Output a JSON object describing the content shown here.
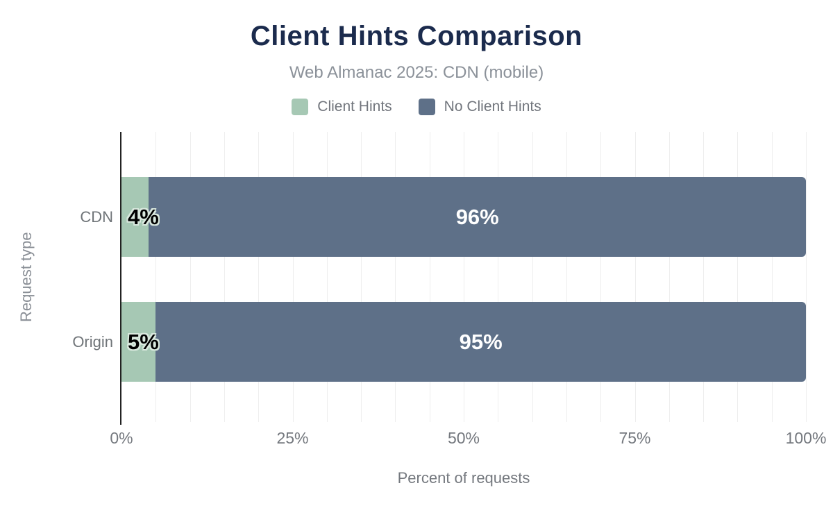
{
  "chart_data": {
    "type": "bar",
    "orientation": "horizontal",
    "stacked": true,
    "title": "Client Hints Comparison",
    "subtitle": "Web Almanac 2025: CDN (mobile)",
    "categories": [
      "CDN",
      "Origin"
    ],
    "series": [
      {
        "name": "Client Hints",
        "color": "#a6c8b4",
        "values": [
          4,
          5
        ],
        "labels": [
          "4%",
          "5%"
        ]
      },
      {
        "name": "No Client Hints",
        "color": "#5e7088",
        "values": [
          96,
          95
        ],
        "labels": [
          "96%",
          "95%"
        ]
      }
    ],
    "xlabel": "Percent of requests",
    "ylabel": "Request type",
    "xlim": [
      0,
      100
    ],
    "xticks": [
      {
        "value": 0,
        "label": "0%"
      },
      {
        "value": 25,
        "label": "25%"
      },
      {
        "value": 50,
        "label": "50%"
      },
      {
        "value": 75,
        "label": "75%"
      },
      {
        "value": 100,
        "label": "100%"
      }
    ],
    "grid": {
      "on": true,
      "minor_step_percent": 5,
      "color": "#eeeeee"
    },
    "legend_position": "top"
  },
  "colors": {
    "title": "#1b2b4d",
    "subtitle": "#8b9199",
    "axis_text": "#74787e",
    "category_text": "#6f7478",
    "axis_line": "#222222",
    "background": "#ffffff",
    "bar_value_dark": "#000000",
    "bar_value_dark_outline": "#d9e8de",
    "bar_value_light": "#ffffff"
  }
}
